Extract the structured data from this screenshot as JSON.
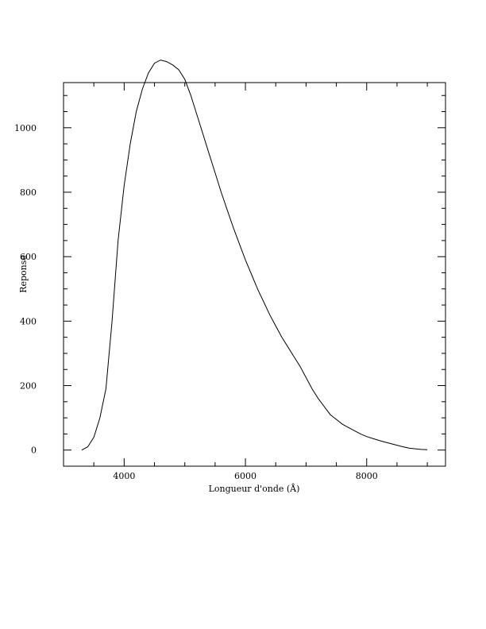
{
  "chart_data": {
    "type": "line",
    "title": "",
    "xlabel": "Longueur d'onde (Å)",
    "ylabel": "Reponse",
    "xlim": [
      3000,
      9300
    ],
    "ylim": [
      -50,
      1140
    ],
    "x_ticks": [
      4000,
      6000,
      8000
    ],
    "x_tick_labels": [
      "4000",
      "6000",
      "8000"
    ],
    "y_ticks": [
      0,
      200,
      400,
      600,
      800,
      1000
    ],
    "y_tick_labels": [
      "0",
      "200",
      "400",
      "600",
      "800",
      "1000"
    ],
    "grid": false,
    "legend": "none",
    "line_color": "#000000",
    "series": [
      {
        "x": [
          3300,
          3400,
          3500,
          3600,
          3700,
          3800,
          3900,
          4000,
          4100,
          4200,
          4300,
          4400,
          4500,
          4600,
          4700,
          4800,
          4900,
          5000,
          5100,
          5200,
          5300,
          5400,
          5500,
          5600,
          5700,
          5800,
          5900,
          6000,
          6100,
          6200,
          6300,
          6400,
          6500,
          6600,
          6700,
          6800,
          6900,
          7000,
          7100,
          7200,
          7300,
          7400,
          7500,
          7600,
          7700,
          7800,
          7900,
          8000,
          8100,
          8200,
          8300,
          8400,
          8500,
          8600,
          8700,
          8800,
          8900,
          9000
        ],
        "y": [
          0,
          10,
          40,
          100,
          190,
          400,
          650,
          820,
          950,
          1050,
          1120,
          1170,
          1200,
          1210,
          1205,
          1195,
          1180,
          1150,
          1100,
          1040,
          980,
          920,
          860,
          800,
          745,
          690,
          640,
          590,
          545,
          500,
          460,
          420,
          385,
          350,
          320,
          290,
          260,
          225,
          190,
          160,
          135,
          110,
          95,
          80,
          70,
          60,
          50,
          42,
          36,
          30,
          25,
          20,
          15,
          10,
          6,
          4,
          2,
          1
        ]
      }
    ]
  }
}
